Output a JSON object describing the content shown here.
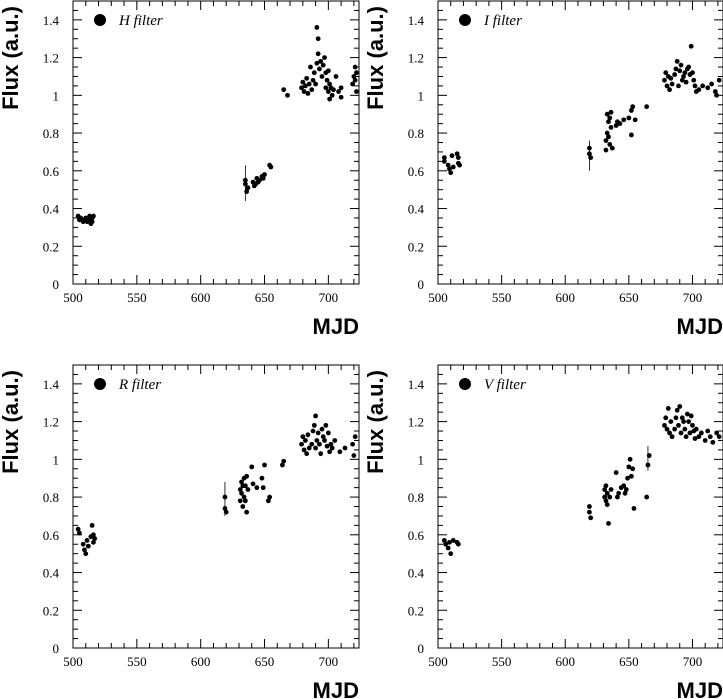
{
  "chart_data": [
    {
      "type": "scatter",
      "legend": "H filter",
      "legend_position": "top-left",
      "xlabel": "MJD",
      "ylabel": "Flux (a.u.)",
      "xlim": [
        500,
        724
      ],
      "ylim": [
        0,
        1.5
      ],
      "xticks": [
        "500",
        "550",
        "600",
        "650",
        "700"
      ],
      "yticks": [
        "0",
        "0.2",
        "0.4",
        "0.6",
        "0.8",
        "1",
        "1.2",
        "1.4"
      ],
      "grid": false,
      "points": [
        [
          504,
          0.36
        ],
        [
          505,
          0.34
        ],
        [
          506,
          0.35
        ],
        [
          507,
          0.34
        ],
        [
          508,
          0.33
        ],
        [
          509,
          0.34
        ],
        [
          510,
          0.35
        ],
        [
          511,
          0.33
        ],
        [
          512,
          0.34
        ],
        [
          513,
          0.36
        ],
        [
          514,
          0.32
        ],
        [
          515,
          0.35
        ],
        [
          516,
          0.36
        ],
        [
          515,
          0.33
        ],
        [
          635,
          0.55
        ],
        [
          635,
          0.53
        ],
        [
          636,
          0.49
        ],
        [
          637,
          0.51
        ],
        [
          641,
          0.54
        ],
        [
          642,
          0.52
        ],
        [
          643,
          0.53
        ],
        [
          644,
          0.56
        ],
        [
          645,
          0.54
        ],
        [
          646,
          0.55
        ],
        [
          648,
          0.57
        ],
        [
          649,
          0.56
        ],
        [
          650,
          0.58
        ],
        [
          654,
          0.63
        ],
        [
          655,
          0.62
        ],
        [
          665,
          1.03
        ],
        [
          668,
          1.0
        ],
        [
          679,
          1.04
        ],
        [
          680,
          1.07
        ],
        [
          681,
          1.02
        ],
        [
          682,
          1.05
        ],
        [
          683,
          1.09
        ],
        [
          684,
          1.01
        ],
        [
          685,
          1.06
        ],
        [
          686,
          1.15
        ],
        [
          687,
          1.03
        ],
        [
          688,
          1.08
        ],
        [
          689,
          1.12
        ],
        [
          690,
          1.06
        ],
        [
          691,
          1.36
        ],
        [
          691,
          1.17
        ],
        [
          692,
          1.3
        ],
        [
          692,
          1.22
        ],
        [
          693,
          1.14
        ],
        [
          694,
          1.18
        ],
        [
          695,
          1.1
        ],
        [
          696,
          1.16
        ],
        [
          697,
          1.2
        ],
        [
          698,
          1.04
        ],
        [
          698,
          1.12
        ],
        [
          699,
          1.08
        ],
        [
          700,
          1.02
        ],
        [
          700,
          1.13
        ],
        [
          701,
          0.98
        ],
        [
          701,
          1.06
        ],
        [
          702,
          1.04
        ],
        [
          703,
          1.0
        ],
        [
          704,
          1.03
        ],
        [
          706,
          1.1
        ],
        [
          708,
          1.02
        ],
        [
          710,
          1.04
        ],
        [
          710,
          0.99
        ],
        [
          719,
          1.06
        ],
        [
          720,
          1.1
        ],
        [
          721,
          1.15
        ],
        [
          721,
          1.08
        ],
        [
          722,
          1.02
        ],
        [
          722,
          1.12
        ]
      ],
      "error_bars": [
        {
          "x": 635,
          "y": 0.535,
          "lo": 0.44,
          "hi": 0.63
        }
      ]
    },
    {
      "type": "scatter",
      "legend": "I filter",
      "legend_position": "top-left",
      "xlabel": "MJD",
      "ylabel": "Flux (a.u.)",
      "xlim": [
        500,
        724
      ],
      "ylim": [
        0,
        1.5
      ],
      "xticks": [
        "500",
        "550",
        "600",
        "650",
        "700"
      ],
      "yticks": [
        "0",
        "0.2",
        "0.4",
        "0.6",
        "0.8",
        "1",
        "1.2",
        "1.4"
      ],
      "grid": false,
      "points": [
        [
          505,
          0.67
        ],
        [
          505,
          0.65
        ],
        [
          508,
          0.63
        ],
        [
          509,
          0.61
        ],
        [
          510,
          0.59
        ],
        [
          511,
          0.68
        ],
        [
          512,
          0.62
        ],
        [
          515,
          0.69
        ],
        [
          516,
          0.64
        ],
        [
          517,
          0.63
        ],
        [
          516,
          0.67
        ],
        [
          619,
          0.72
        ],
        [
          619,
          0.69
        ],
        [
          620,
          0.67
        ],
        [
          632,
          0.71
        ],
        [
          632,
          0.76
        ],
        [
          633,
          0.8
        ],
        [
          633,
          0.9
        ],
        [
          634,
          0.86
        ],
        [
          634,
          0.78
        ],
        [
          635,
          0.88
        ],
        [
          635,
          0.74
        ],
        [
          636,
          0.91
        ],
        [
          636,
          0.83
        ],
        [
          637,
          0.72
        ],
        [
          640,
          0.84
        ],
        [
          641,
          0.86
        ],
        [
          643,
          0.85
        ],
        [
          646,
          0.87
        ],
        [
          650,
          0.88
        ],
        [
          652,
          0.92
        ],
        [
          652,
          0.79
        ],
        [
          653,
          0.94
        ],
        [
          655,
          0.87
        ],
        [
          664,
          0.94
        ],
        [
          678,
          1.08
        ],
        [
          679,
          1.12
        ],
        [
          680,
          1.05
        ],
        [
          681,
          1.1
        ],
        [
          682,
          1.03
        ],
        [
          683,
          1.09
        ],
        [
          684,
          1.06
        ],
        [
          686,
          1.11
        ],
        [
          687,
          1.14
        ],
        [
          688,
          1.18
        ],
        [
          689,
          1.05
        ],
        [
          690,
          1.13
        ],
        [
          691,
          1.16
        ],
        [
          692,
          1.08
        ],
        [
          693,
          1.1
        ],
        [
          694,
          1.12
        ],
        [
          695,
          1.07
        ],
        [
          696,
          1.14
        ],
        [
          697,
          1.15
        ],
        [
          698,
          1.11
        ],
        [
          699,
          1.26
        ],
        [
          700,
          1.12
        ],
        [
          701,
          1.08
        ],
        [
          702,
          1.05
        ],
        [
          703,
          1.02
        ],
        [
          705,
          1.03
        ],
        [
          708,
          1.05
        ],
        [
          712,
          1.04
        ],
        [
          715,
          1.06
        ],
        [
          718,
          1.02
        ],
        [
          719,
          1.0
        ],
        [
          721,
          1.08
        ]
      ],
      "error_bars": [
        {
          "x": 619,
          "y": 0.68,
          "lo": 0.6,
          "hi": 0.76
        }
      ]
    },
    {
      "type": "scatter",
      "legend": "R filter",
      "legend_position": "top-left",
      "xlabel": "MJD",
      "ylabel": "Flux (a.u.)",
      "xlim": [
        500,
        724
      ],
      "ylim": [
        0,
        1.5
      ],
      "xticks": [
        "500",
        "550",
        "600",
        "650",
        "700"
      ],
      "yticks": [
        "0",
        "0.2",
        "0.4",
        "0.6",
        "0.8",
        "1",
        "1.2",
        "1.4"
      ],
      "grid": false,
      "points": [
        [
          504,
          0.63
        ],
        [
          505,
          0.61
        ],
        [
          508,
          0.55
        ],
        [
          509,
          0.52
        ],
        [
          510,
          0.5
        ],
        [
          511,
          0.57
        ],
        [
          512,
          0.54
        ],
        [
          514,
          0.59
        ],
        [
          515,
          0.65
        ],
        [
          516,
          0.6
        ],
        [
          517,
          0.58
        ],
        [
          516,
          0.56
        ],
        [
          619,
          0.8
        ],
        [
          619,
          0.74
        ],
        [
          620,
          0.72
        ],
        [
          631,
          0.78
        ],
        [
          631,
          0.84
        ],
        [
          632,
          0.88
        ],
        [
          632,
          0.82
        ],
        [
          633,
          0.86
        ],
        [
          633,
          0.75
        ],
        [
          634,
          0.9
        ],
        [
          634,
          0.8
        ],
        [
          635,
          0.86
        ],
        [
          635,
          0.78
        ],
        [
          636,
          0.91
        ],
        [
          636,
          0.72
        ],
        [
          637,
          0.84
        ],
        [
          640,
          0.96
        ],
        [
          641,
          0.87
        ],
        [
          644,
          0.85
        ],
        [
          648,
          0.9
        ],
        [
          649,
          0.85
        ],
        [
          650,
          0.97
        ],
        [
          653,
          0.78
        ],
        [
          654,
          0.8
        ],
        [
          664,
          0.97
        ],
        [
          665,
          0.99
        ],
        [
          679,
          1.08
        ],
        [
          680,
          1.12
        ],
        [
          681,
          1.05
        ],
        [
          682,
          1.1
        ],
        [
          683,
          1.03
        ],
        [
          684,
          1.13
        ],
        [
          685,
          1.06
        ],
        [
          687,
          1.08
        ],
        [
          688,
          1.15
        ],
        [
          689,
          1.18
        ],
        [
          690,
          1.23
        ],
        [
          690,
          1.06
        ],
        [
          691,
          1.1
        ],
        [
          692,
          1.14
        ],
        [
          693,
          1.08
        ],
        [
          694,
          1.03
        ],
        [
          695,
          1.16
        ],
        [
          696,
          1.12
        ],
        [
          697,
          1.1
        ],
        [
          698,
          1.18
        ],
        [
          699,
          1.07
        ],
        [
          700,
          1.14
        ],
        [
          701,
          1.04
        ],
        [
          702,
          1.08
        ],
        [
          703,
          1.06
        ],
        [
          705,
          1.1
        ],
        [
          709,
          1.04
        ],
        [
          713,
          1.06
        ],
        [
          719,
          1.08
        ],
        [
          720,
          1.02
        ],
        [
          721,
          1.12
        ]
      ],
      "error_bars": [
        {
          "x": 619,
          "y": 0.78,
          "lo": 0.7,
          "hi": 0.88
        }
      ]
    },
    {
      "type": "scatter",
      "legend": "V filter",
      "legend_position": "top-left",
      "xlabel": "MJD",
      "ylabel": "Flux (a.u.)",
      "xlim": [
        500,
        724
      ],
      "ylim": [
        0,
        1.5
      ],
      "xticks": [
        "500",
        "550",
        "600",
        "650",
        "700"
      ],
      "yticks": [
        "0",
        "0.2",
        "0.4",
        "0.6",
        "0.8",
        "1",
        "1.2",
        "1.4"
      ],
      "grid": false,
      "points": [
        [
          505,
          0.57
        ],
        [
          506,
          0.55
        ],
        [
          508,
          0.53
        ],
        [
          509,
          0.56
        ],
        [
          510,
          0.5
        ],
        [
          512,
          0.57
        ],
        [
          515,
          0.56
        ],
        [
          516,
          0.55
        ],
        [
          619,
          0.72
        ],
        [
          619,
          0.75
        ],
        [
          620,
          0.69
        ],
        [
          631,
          0.8
        ],
        [
          631,
          0.84
        ],
        [
          632,
          0.86
        ],
        [
          632,
          0.78
        ],
        [
          633,
          0.82
        ],
        [
          633,
          0.76
        ],
        [
          634,
          0.66
        ],
        [
          635,
          0.8
        ],
        [
          636,
          0.84
        ],
        [
          640,
          0.93
        ],
        [
          641,
          0.8
        ],
        [
          642,
          0.82
        ],
        [
          644,
          0.85
        ],
        [
          646,
          0.86
        ],
        [
          647,
          0.82
        ],
        [
          648,
          0.84
        ],
        [
          649,
          0.9
        ],
        [
          650,
          0.96
        ],
        [
          651,
          1.0
        ],
        [
          652,
          0.91
        ],
        [
          653,
          0.95
        ],
        [
          654,
          0.74
        ],
        [
          664,
          0.8
        ],
        [
          665,
          0.97
        ],
        [
          666,
          1.02
        ],
        [
          678,
          1.18
        ],
        [
          679,
          1.22
        ],
        [
          680,
          1.16
        ],
        [
          681,
          1.27
        ],
        [
          682,
          1.14
        ],
        [
          683,
          1.2
        ],
        [
          684,
          1.12
        ],
        [
          686,
          1.16
        ],
        [
          687,
          1.22
        ],
        [
          688,
          1.26
        ],
        [
          689,
          1.18
        ],
        [
          690,
          1.28
        ],
        [
          691,
          1.14
        ],
        [
          692,
          1.22
        ],
        [
          693,
          1.2
        ],
        [
          694,
          1.16
        ],
        [
          695,
          1.12
        ],
        [
          696,
          1.24
        ],
        [
          697,
          1.2
        ],
        [
          698,
          1.14
        ],
        [
          699,
          1.23
        ],
        [
          700,
          1.18
        ],
        [
          701,
          1.15
        ],
        [
          702,
          1.11
        ],
        [
          703,
          1.16
        ],
        [
          705,
          1.12
        ],
        [
          707,
          1.14
        ],
        [
          710,
          1.1
        ],
        [
          712,
          1.15
        ],
        [
          714,
          1.12
        ],
        [
          716,
          1.09
        ],
        [
          719,
          1.14
        ],
        [
          721,
          1.12
        ]
      ],
      "error_bars": [
        {
          "x": 665,
          "y": 0.99,
          "lo": 0.94,
          "hi": 1.07
        }
      ]
    }
  ]
}
